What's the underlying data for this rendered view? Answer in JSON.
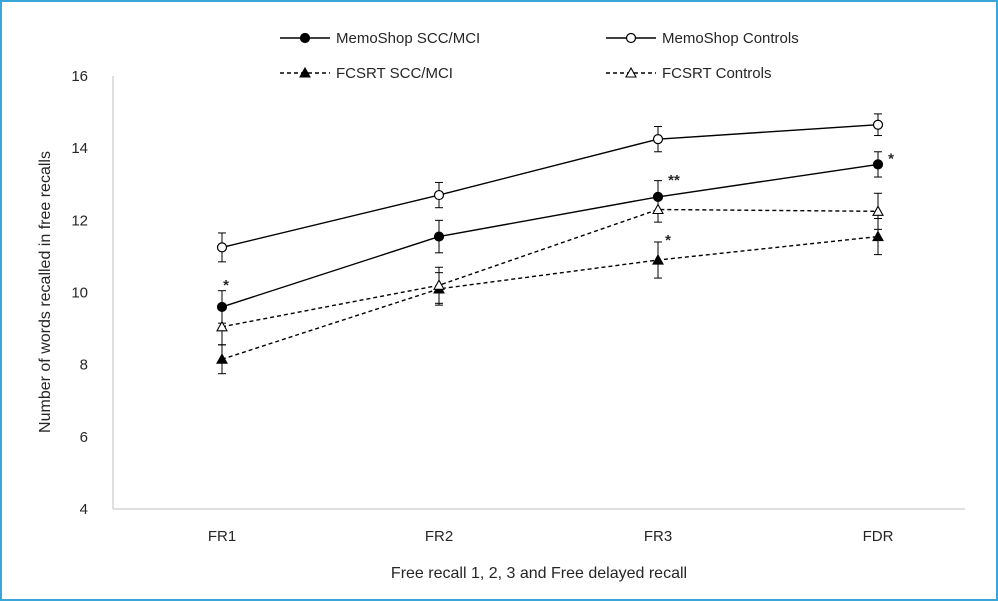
{
  "chart_data": {
    "type": "line",
    "title": "",
    "xlabel": "Free recall 1, 2, 3 and Free delayed recall",
    "ylabel": "Number of words recalled in free recalls",
    "categories": [
      "FR1",
      "FR2",
      "FR3",
      "FDR"
    ],
    "ylim": [
      4,
      16
    ],
    "yticks": [
      4,
      6,
      8,
      10,
      12,
      14,
      16
    ],
    "grid": false,
    "legend_position": "top",
    "series": [
      {
        "name": "MemoShop SCC/MCI",
        "values": [
          9.6,
          11.55,
          12.65,
          13.55
        ],
        "error": [
          0.45,
          0.45,
          0.45,
          0.35
        ],
        "line": "solid",
        "marker": "filled-circle"
      },
      {
        "name": "MemoShop Controls",
        "values": [
          11.25,
          12.7,
          14.25,
          14.65
        ],
        "error": [
          0.4,
          0.35,
          0.35,
          0.3
        ],
        "line": "solid",
        "marker": "open-circle"
      },
      {
        "name": "FCSRT SCC/MCI",
        "values": [
          8.15,
          10.1,
          10.9,
          11.55
        ],
        "error": [
          0.4,
          0.45,
          0.5,
          0.5
        ],
        "line": "dashed",
        "marker": "filled-triangle"
      },
      {
        "name": "FCSRT Controls",
        "values": [
          9.05,
          10.2,
          12.3,
          12.25
        ],
        "error": [
          0.5,
          0.5,
          0.35,
          0.5
        ],
        "line": "dashed",
        "marker": "open-triangle"
      }
    ],
    "annotations": [
      {
        "text": "*",
        "category": "FR1",
        "y": 10.35
      },
      {
        "text": "**",
        "category": "FR3",
        "y": 13.25
      },
      {
        "text": "*",
        "category": "FR3",
        "y": 11.6
      },
      {
        "text": "*",
        "category": "FDR",
        "y": 13.85
      }
    ]
  }
}
